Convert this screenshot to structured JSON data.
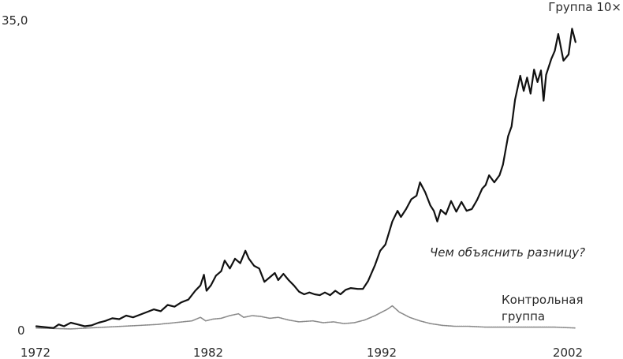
{
  "chart_data": {
    "type": "line",
    "title": "",
    "xlabel": "",
    "ylabel": "",
    "xlim": [
      1972,
      2003.3
    ],
    "ylim": [
      0,
      35
    ],
    "x_ticks": [
      "1972",
      "1982",
      "1992",
      "2002"
    ],
    "y_ticks": [
      "0",
      "35,0"
    ],
    "legend": "none",
    "grid": false,
    "annotation": "Чем объяснить разницу?",
    "series": [
      {
        "name": "Группа 10×",
        "color": "#111111",
        "points": [
          [
            1972.0,
            0.4
          ],
          [
            1972.5,
            0.3
          ],
          [
            1973.0,
            0.2
          ],
          [
            1973.3,
            0.6
          ],
          [
            1973.6,
            0.4
          ],
          [
            1974.0,
            0.8
          ],
          [
            1974.4,
            0.6
          ],
          [
            1974.8,
            0.4
          ],
          [
            1975.2,
            0.5
          ],
          [
            1975.6,
            0.8
          ],
          [
            1976.0,
            1.0
          ],
          [
            1976.4,
            1.3
          ],
          [
            1976.8,
            1.2
          ],
          [
            1977.2,
            1.6
          ],
          [
            1977.6,
            1.4
          ],
          [
            1978.0,
            1.7
          ],
          [
            1978.4,
            2.0
          ],
          [
            1978.8,
            2.3
          ],
          [
            1979.2,
            2.1
          ],
          [
            1979.6,
            2.8
          ],
          [
            1980.0,
            2.6
          ],
          [
            1980.4,
            3.1
          ],
          [
            1980.8,
            3.4
          ],
          [
            1981.2,
            4.4
          ],
          [
            1981.5,
            5.0
          ],
          [
            1981.7,
            6.2
          ],
          [
            1981.85,
            4.4
          ],
          [
            1982.1,
            5.0
          ],
          [
            1982.4,
            6.1
          ],
          [
            1982.7,
            6.6
          ],
          [
            1982.9,
            7.8
          ],
          [
            1983.2,
            6.9
          ],
          [
            1983.5,
            8.0
          ],
          [
            1983.8,
            7.5
          ],
          [
            1984.1,
            8.9
          ],
          [
            1984.3,
            8.0
          ],
          [
            1984.6,
            7.2
          ],
          [
            1984.9,
            6.9
          ],
          [
            1985.2,
            5.4
          ],
          [
            1985.5,
            5.9
          ],
          [
            1985.8,
            6.4
          ],
          [
            1986.0,
            5.6
          ],
          [
            1986.3,
            6.3
          ],
          [
            1986.6,
            5.6
          ],
          [
            1986.9,
            5.0
          ],
          [
            1987.2,
            4.3
          ],
          [
            1987.5,
            4.0
          ],
          [
            1987.8,
            4.2
          ],
          [
            1988.1,
            4.0
          ],
          [
            1988.4,
            3.9
          ],
          [
            1988.7,
            4.2
          ],
          [
            1989.0,
            3.9
          ],
          [
            1989.3,
            4.4
          ],
          [
            1989.6,
            4.0
          ],
          [
            1989.9,
            4.5
          ],
          [
            1990.2,
            4.7
          ],
          [
            1990.6,
            4.6
          ],
          [
            1990.9,
            4.6
          ],
          [
            1991.2,
            5.5
          ],
          [
            1991.6,
            7.3
          ],
          [
            1991.9,
            8.9
          ],
          [
            1992.2,
            9.6
          ],
          [
            1992.6,
            12.2
          ],
          [
            1992.9,
            13.4
          ],
          [
            1993.1,
            12.7
          ],
          [
            1993.4,
            13.6
          ],
          [
            1993.7,
            14.7
          ],
          [
            1994.0,
            15.1
          ],
          [
            1994.2,
            16.6
          ],
          [
            1994.5,
            15.5
          ],
          [
            1994.8,
            14.0
          ],
          [
            1995.0,
            13.4
          ],
          [
            1995.2,
            12.2
          ],
          [
            1995.4,
            13.5
          ],
          [
            1995.7,
            13.0
          ],
          [
            1996.0,
            14.5
          ],
          [
            1996.3,
            13.3
          ],
          [
            1996.6,
            14.4
          ],
          [
            1996.9,
            13.4
          ],
          [
            1997.2,
            13.6
          ],
          [
            1997.5,
            14.6
          ],
          [
            1997.8,
            15.9
          ],
          [
            1998.0,
            16.3
          ],
          [
            1998.2,
            17.4
          ],
          [
            1998.5,
            16.6
          ],
          [
            1998.8,
            17.4
          ],
          [
            1999.0,
            18.6
          ],
          [
            1999.3,
            21.8
          ],
          [
            1999.5,
            22.9
          ],
          [
            1999.7,
            25.9
          ],
          [
            2000.0,
            28.6
          ],
          [
            2000.2,
            26.9
          ],
          [
            2000.4,
            28.4
          ],
          [
            2000.6,
            26.6
          ],
          [
            2000.8,
            29.3
          ],
          [
            2001.0,
            27.9
          ],
          [
            2001.2,
            29.2
          ],
          [
            2001.35,
            25.8
          ],
          [
            2001.5,
            28.7
          ],
          [
            2001.8,
            30.5
          ],
          [
            2002.0,
            31.4
          ],
          [
            2002.2,
            33.3
          ],
          [
            2002.5,
            30.3
          ],
          [
            2002.8,
            31.0
          ],
          [
            2003.0,
            33.9
          ],
          [
            2003.2,
            32.4
          ]
        ]
      },
      {
        "name": "Контрольная группа",
        "color": "#8a8a8a",
        "points": [
          [
            1972.0,
            0.2
          ],
          [
            1974.0,
            0.1
          ],
          [
            1975.0,
            0.2
          ],
          [
            1976.0,
            0.3
          ],
          [
            1977.0,
            0.4
          ],
          [
            1978.0,
            0.5
          ],
          [
            1979.0,
            0.6
          ],
          [
            1980.0,
            0.8
          ],
          [
            1981.0,
            1.0
          ],
          [
            1981.5,
            1.4
          ],
          [
            1981.8,
            1.0
          ],
          [
            1982.2,
            1.2
          ],
          [
            1982.7,
            1.3
          ],
          [
            1983.2,
            1.6
          ],
          [
            1983.7,
            1.8
          ],
          [
            1984.0,
            1.4
          ],
          [
            1984.5,
            1.6
          ],
          [
            1985.0,
            1.5
          ],
          [
            1985.5,
            1.3
          ],
          [
            1986.0,
            1.4
          ],
          [
            1986.6,
            1.1
          ],
          [
            1987.2,
            0.9
          ],
          [
            1988.0,
            1.0
          ],
          [
            1988.6,
            0.8
          ],
          [
            1989.2,
            0.9
          ],
          [
            1989.8,
            0.7
          ],
          [
            1990.4,
            0.8
          ],
          [
            1991.0,
            1.1
          ],
          [
            1991.6,
            1.6
          ],
          [
            1992.0,
            2.0
          ],
          [
            1992.3,
            2.3
          ],
          [
            1992.6,
            2.7
          ],
          [
            1993.0,
            2.0
          ],
          [
            1993.6,
            1.4
          ],
          [
            1994.2,
            1.0
          ],
          [
            1994.8,
            0.7
          ],
          [
            1995.5,
            0.5
          ],
          [
            1996.2,
            0.4
          ],
          [
            1997.0,
            0.4
          ],
          [
            1998.0,
            0.3
          ],
          [
            1999.0,
            0.3
          ],
          [
            2000.0,
            0.3
          ],
          [
            2001.0,
            0.3
          ],
          [
            2002.0,
            0.3
          ],
          [
            2003.2,
            0.2
          ]
        ]
      }
    ]
  }
}
